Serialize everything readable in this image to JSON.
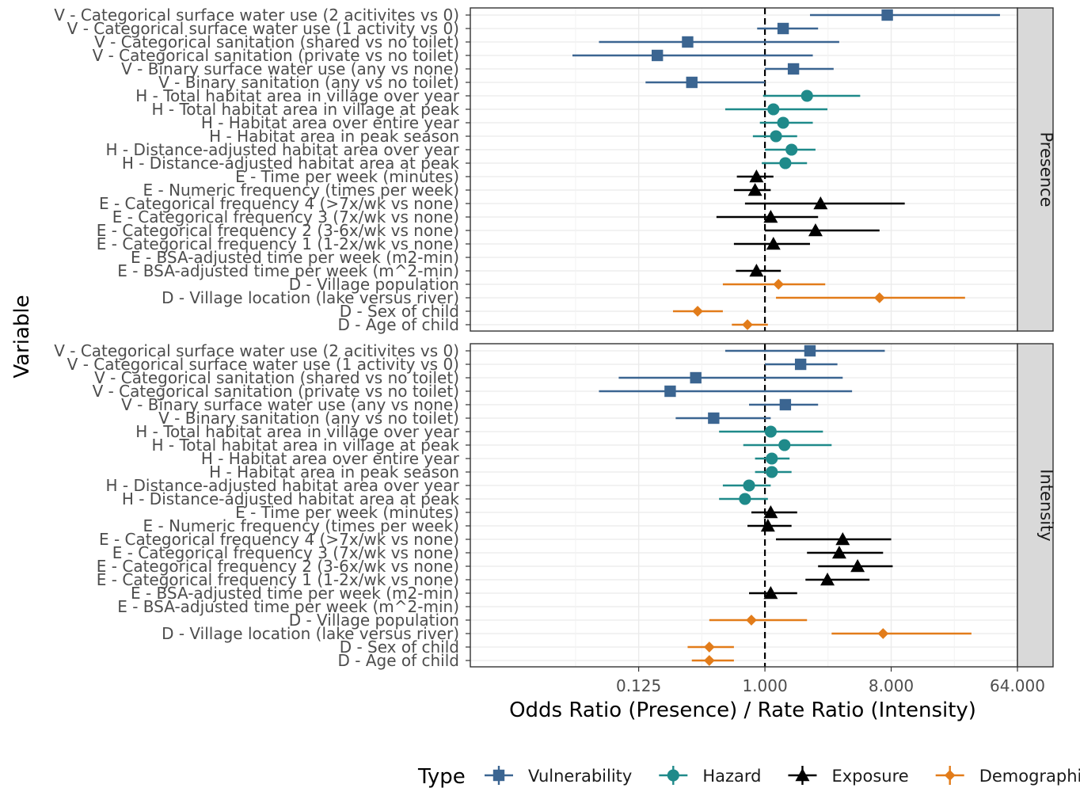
{
  "chart_data": {
    "type": "forest",
    "x_scale": "log2",
    "xlim": [
      0.0078125,
      64
    ],
    "reference_line": 1,
    "xlabel": "Odds Ratio (Presence) / Rate Ratio (Intensity)",
    "ylabel": "Variable",
    "x_ticks": [
      {
        "value": 0.125,
        "label": "0.125"
      },
      {
        "value": 1,
        "label": "1.000"
      },
      {
        "value": 8,
        "label": "8.000"
      },
      {
        "value": 64,
        "label": "64.000"
      }
    ],
    "legend": {
      "title": "Type",
      "position": "bottom",
      "items": [
        {
          "type": "V",
          "label": "Vulnerability",
          "color": "#3b6591",
          "shape": "square"
        },
        {
          "type": "H",
          "label": "Hazard",
          "color": "#1f8a8a",
          "shape": "circle"
        },
        {
          "type": "E",
          "label": "Exposure",
          "color": "#000000",
          "shape": "triangle"
        },
        {
          "type": "D",
          "label": "Demographics",
          "color": "#e27c1a",
          "shape": "diamond"
        }
      ]
    },
    "variables": [
      {
        "label": "V - Categorical surface water use (2 acitivites vs 0)",
        "type": "V"
      },
      {
        "label": "V - Categorical surface water use (1 activity vs 0)",
        "type": "V"
      },
      {
        "label": "V - Categorical sanitation (shared vs no toilet)",
        "type": "V"
      },
      {
        "label": "V - Categorical sanitation (private vs no toilet)",
        "type": "V"
      },
      {
        "label": "V - Binary surface water use (any vs none)",
        "type": "V"
      },
      {
        "label": "V - Binary sanitation (any vs no toilet)",
        "type": "V"
      },
      {
        "label": "H - Total habitat area in village over year",
        "type": "H"
      },
      {
        "label": "H - Total habitat area in village at peak",
        "type": "H"
      },
      {
        "label": "H - Habitat area over entire year",
        "type": "H"
      },
      {
        "label": "H - Habitat area in peak season",
        "type": "H"
      },
      {
        "label": "H - Distance-adjusted habitat area over year",
        "type": "H"
      },
      {
        "label": "H - Distance-adjusted habitat area at peak",
        "type": "H"
      },
      {
        "label": "E - Time per week (minutes)",
        "type": "E"
      },
      {
        "label": "E - Numeric frequency (times per week)",
        "type": "E"
      },
      {
        "label": "E - Categorical frequency 4 (>7x/wk vs none)",
        "type": "E"
      },
      {
        "label": "E - Categorical frequency 3 (7x/wk vs none)",
        "type": "E"
      },
      {
        "label": "E - Categorical frequency 2 (3-6x/wk vs none)",
        "type": "E"
      },
      {
        "label": "E - Categorical frequency 1 (1-2x/wk vs none)",
        "type": "E"
      },
      {
        "label": "E - BSA-adjusted time per week (m2-min)",
        "type": "E"
      },
      {
        "label": "E - BSA-adjusted time per week (m^2-min)",
        "type": "E"
      },
      {
        "label": "D - Village population",
        "type": "D"
      },
      {
        "label": "D - Village location (lake versus river)",
        "type": "D"
      },
      {
        "label": "D - Sex of child",
        "type": "D"
      },
      {
        "label": "D - Age of child",
        "type": "D"
      }
    ],
    "panels": [
      {
        "name": "Presence",
        "estimates": [
          [
            7.5,
            2.1,
            48
          ],
          [
            1.35,
            0.88,
            2.4
          ],
          [
            0.28,
            0.065,
            3.4
          ],
          [
            0.17,
            0.042,
            2.2
          ],
          [
            1.6,
            1.0,
            3.1
          ],
          [
            0.3,
            0.14,
            1.0
          ],
          [
            2.0,
            0.97,
            4.8
          ],
          [
            1.15,
            0.52,
            2.8
          ],
          [
            1.35,
            0.92,
            2.2
          ],
          [
            1.2,
            0.82,
            1.7
          ],
          [
            1.55,
            1.0,
            2.3
          ],
          [
            1.4,
            0.95,
            2.0
          ],
          [
            0.87,
            0.63,
            1.15
          ],
          [
            0.85,
            0.6,
            1.1
          ],
          [
            2.5,
            0.72,
            10.0
          ],
          [
            1.1,
            0.45,
            2.4
          ],
          [
            2.3,
            1.0,
            6.6
          ],
          [
            1.15,
            0.6,
            2.1
          ],
          null,
          [
            0.87,
            0.62,
            1.3
          ],
          [
            1.25,
            0.5,
            2.7
          ],
          [
            6.6,
            1.2,
            27
          ],
          [
            0.33,
            0.22,
            0.5
          ],
          [
            0.75,
            0.58,
            1.05
          ]
        ]
      },
      {
        "name": "Intensity",
        "estimates": [
          [
            2.1,
            0.52,
            7.2
          ],
          [
            1.8,
            1.0,
            3.3
          ],
          [
            0.32,
            0.09,
            3.6
          ],
          [
            0.21,
            0.065,
            4.2
          ],
          [
            1.4,
            0.77,
            2.4
          ],
          [
            0.43,
            0.23,
            1.1
          ],
          [
            1.1,
            0.47,
            2.6
          ],
          [
            1.38,
            0.7,
            3.0
          ],
          [
            1.12,
            0.85,
            1.5
          ],
          [
            1.12,
            0.85,
            1.55
          ],
          [
            0.77,
            0.5,
            1.1
          ],
          [
            0.72,
            0.47,
            1.05
          ],
          [
            1.1,
            0.8,
            1.7
          ],
          [
            1.05,
            0.75,
            1.55
          ],
          [
            3.6,
            1.2,
            8.0
          ],
          [
            3.4,
            2.0,
            7.0
          ],
          [
            4.6,
            2.4,
            8.2
          ],
          [
            2.8,
            1.95,
            5.6
          ],
          [
            1.1,
            0.77,
            1.7
          ],
          null,
          [
            0.8,
            0.4,
            2.0
          ],
          [
            7.0,
            3.0,
            30
          ],
          [
            0.4,
            0.28,
            0.6
          ],
          [
            0.4,
            0.3,
            0.6
          ]
        ]
      }
    ]
  }
}
